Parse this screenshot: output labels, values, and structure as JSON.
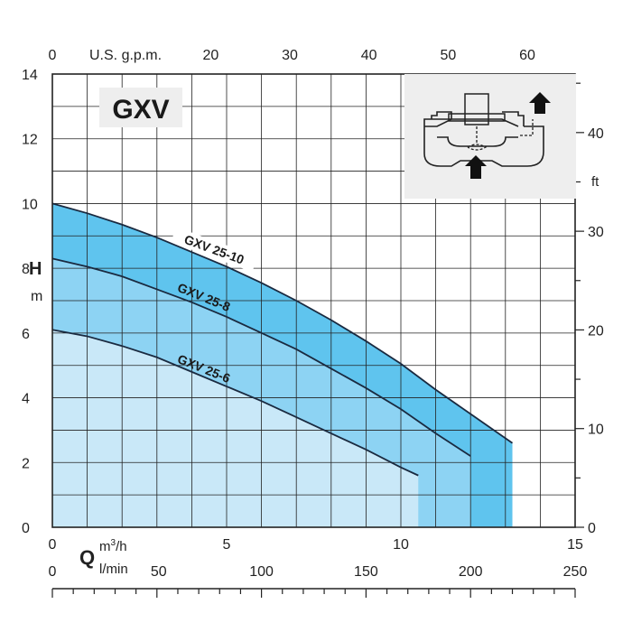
{
  "chart_data": {
    "type": "area",
    "title": "GXV",
    "colors": {
      "band_low": "#c9e8f8",
      "band_mid": "#8dd3f3",
      "band_high": "#5fc4ee",
      "curve": "#1a2a40",
      "grid": "#222222",
      "inset_bg": "#eeeeee"
    },
    "axes": {
      "x_bottom": {
        "unit": "m³/h",
        "symbol": "Q",
        "unit_sup_base": "m",
        "unit_sup_exp": "3",
        "unit_sup_tail": "/h",
        "range": [
          0,
          15
        ],
        "ticks": [
          "0",
          "5",
          "10",
          "15"
        ],
        "tick_values": [
          0,
          5,
          10,
          15
        ]
      },
      "x_bottom2": {
        "unit": "l/min",
        "range": [
          0,
          250
        ],
        "ticks": [
          "0",
          "50",
          "100",
          "150",
          "200",
          "250"
        ],
        "tick_values": [
          0,
          50,
          100,
          150,
          200,
          250
        ]
      },
      "x_top": {
        "unit": "U.S. g.p.m.",
        "ticks": [
          "0",
          "20",
          "30",
          "40",
          "50",
          "60"
        ],
        "tick_values": [
          0,
          20,
          30,
          40,
          50,
          60
        ]
      },
      "y_left": {
        "label": "H",
        "unit": "m",
        "range": [
          0,
          14
        ],
        "ticks": [
          "0",
          "2",
          "4",
          "6",
          "8",
          "10",
          "12",
          "14"
        ],
        "tick_values": [
          0,
          2,
          4,
          6,
          8,
          10,
          12,
          14
        ]
      },
      "y_right": {
        "unit": "ft",
        "ticks": [
          "0",
          "10",
          "20",
          "30",
          "40"
        ],
        "tick_values": [
          0,
          10,
          20,
          30,
          40
        ]
      }
    },
    "series": [
      {
        "name": "GXV 25-6",
        "x": [
          0,
          1,
          2,
          3,
          4,
          5,
          6,
          7,
          8,
          9,
          10,
          10.5
        ],
        "y": [
          6.1,
          5.9,
          5.6,
          5.25,
          4.8,
          4.35,
          3.9,
          3.4,
          2.9,
          2.4,
          1.85,
          1.6
        ]
      },
      {
        "name": "GXV 25-8",
        "x": [
          0,
          1,
          2,
          3,
          4,
          5,
          6,
          7,
          8,
          9,
          10,
          11,
          12
        ],
        "y": [
          8.3,
          8.05,
          7.75,
          7.35,
          6.95,
          6.5,
          6.0,
          5.5,
          4.9,
          4.3,
          3.65,
          2.9,
          2.2
        ]
      },
      {
        "name": "GXV 25-10",
        "x": [
          0,
          1,
          2,
          3,
          4,
          5,
          6,
          7,
          8,
          9,
          10,
          11,
          12,
          13.2
        ],
        "y": [
          10.0,
          9.7,
          9.35,
          8.95,
          8.5,
          8.05,
          7.55,
          7.0,
          6.4,
          5.75,
          5.05,
          4.25,
          3.5,
          2.6
        ]
      }
    ],
    "grid": true
  }
}
